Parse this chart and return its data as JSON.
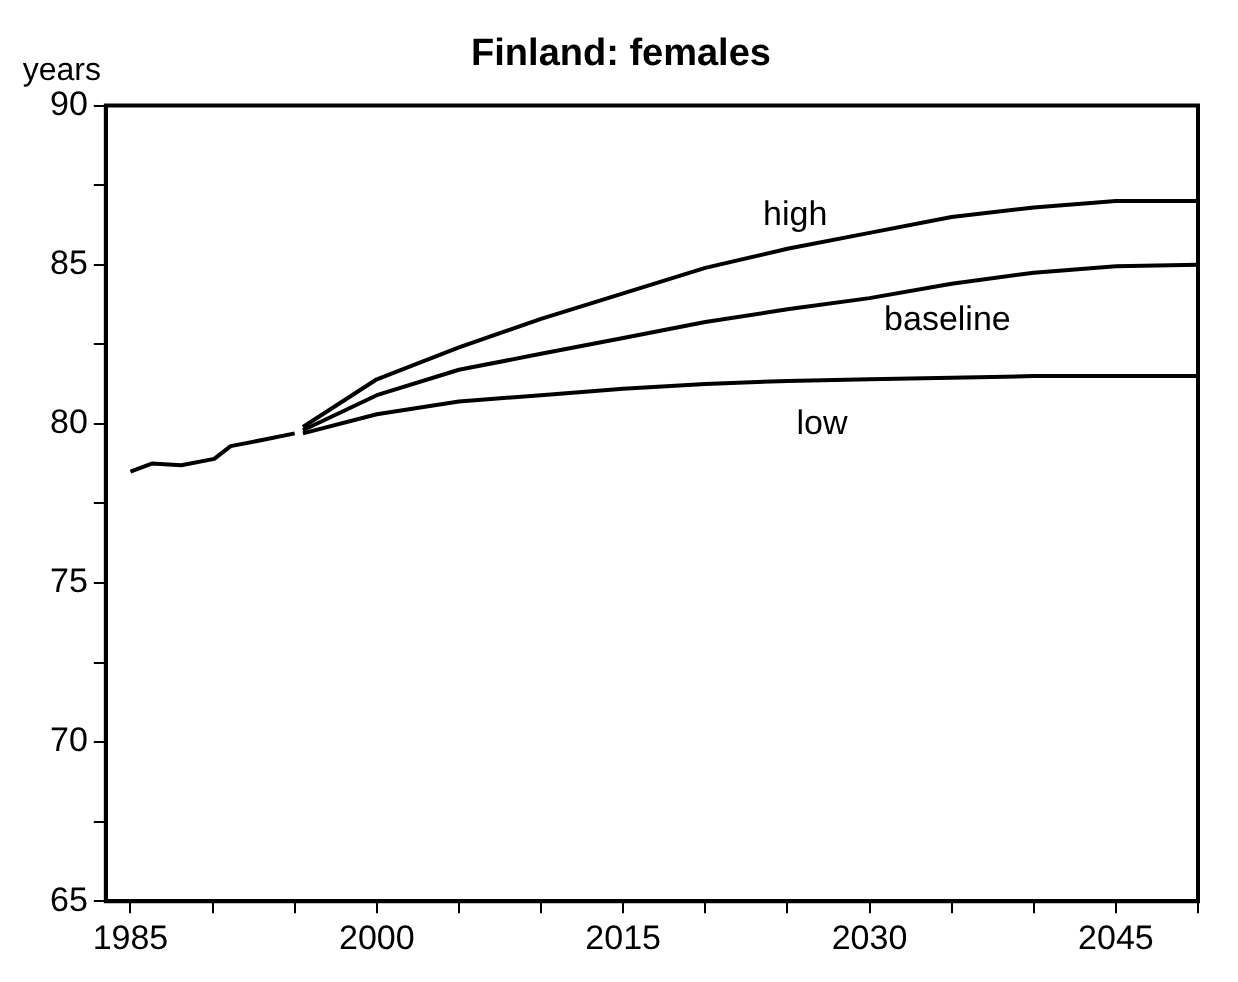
{
  "chart_data": {
    "type": "line",
    "title": "Finland: females",
    "ylabel": "years",
    "xlim": [
      1983.5,
      2050
    ],
    "ylim": [
      65,
      90
    ],
    "xticks": [
      1985,
      {
        "value": 1990,
        "label": null
      },
      {
        "value": 1995,
        "label": null
      },
      2000,
      {
        "value": 2005,
        "label": null
      },
      {
        "value": 2010,
        "label": null
      },
      2015,
      {
        "value": 2020,
        "label": null
      },
      {
        "value": 2025,
        "label": null
      },
      2030,
      {
        "value": 2035,
        "label": null
      },
      {
        "value": 2040,
        "label": null
      },
      2045,
      {
        "value": 2050,
        "label": null
      }
    ],
    "yticks": [
      65,
      {
        "value": 67.5,
        "label": null
      },
      70,
      {
        "value": 72.5,
        "label": null
      },
      75,
      {
        "value": 77.5,
        "label": null
      },
      80,
      {
        "value": 82.5,
        "label": null
      },
      85,
      {
        "value": 87.5,
        "label": null
      },
      90
    ],
    "grid": false,
    "legend": false,
    "marker": "none",
    "line_style": "solid",
    "series": [
      {
        "color": "#000000",
        "x": [
          1985,
          1986.3,
          1988.1,
          1990.1,
          1991.1,
          1993.1,
          1995
        ],
        "values": [
          78.5,
          78.75,
          78.7,
          78.9,
          79.3,
          79.5,
          79.7
        ]
      },
      {
        "name": "high",
        "color": "#000000",
        "x": [
          1995.5,
          2000,
          2005,
          2010,
          2015,
          2020,
          2025,
          2030,
          2035,
          2040,
          2045,
          2050
        ],
        "values": [
          79.9,
          81.4,
          82.4,
          83.3,
          84.1,
          84.9,
          85.5,
          86.0,
          86.5,
          86.8,
          87.0,
          87.0
        ]
      },
      {
        "name": "baseline",
        "color": "#000000",
        "x": [
          1995.5,
          2000,
          2005,
          2010,
          2015,
          2020,
          2025,
          2030,
          2035,
          2040,
          2045,
          2050
        ],
        "values": [
          79.8,
          80.9,
          81.7,
          82.2,
          82.7,
          83.2,
          83.6,
          83.95,
          84.4,
          84.75,
          84.95,
          85.0
        ]
      },
      {
        "name": "low",
        "color": "#000000",
        "x": [
          1995.5,
          2000,
          2005,
          2010,
          2015,
          2020,
          2025,
          2030,
          2035,
          2040,
          2045,
          2050
        ],
        "values": [
          79.7,
          80.3,
          80.7,
          80.9,
          81.1,
          81.25,
          81.35,
          81.4,
          81.45,
          81.5,
          81.5,
          81.5
        ]
      }
    ]
  }
}
